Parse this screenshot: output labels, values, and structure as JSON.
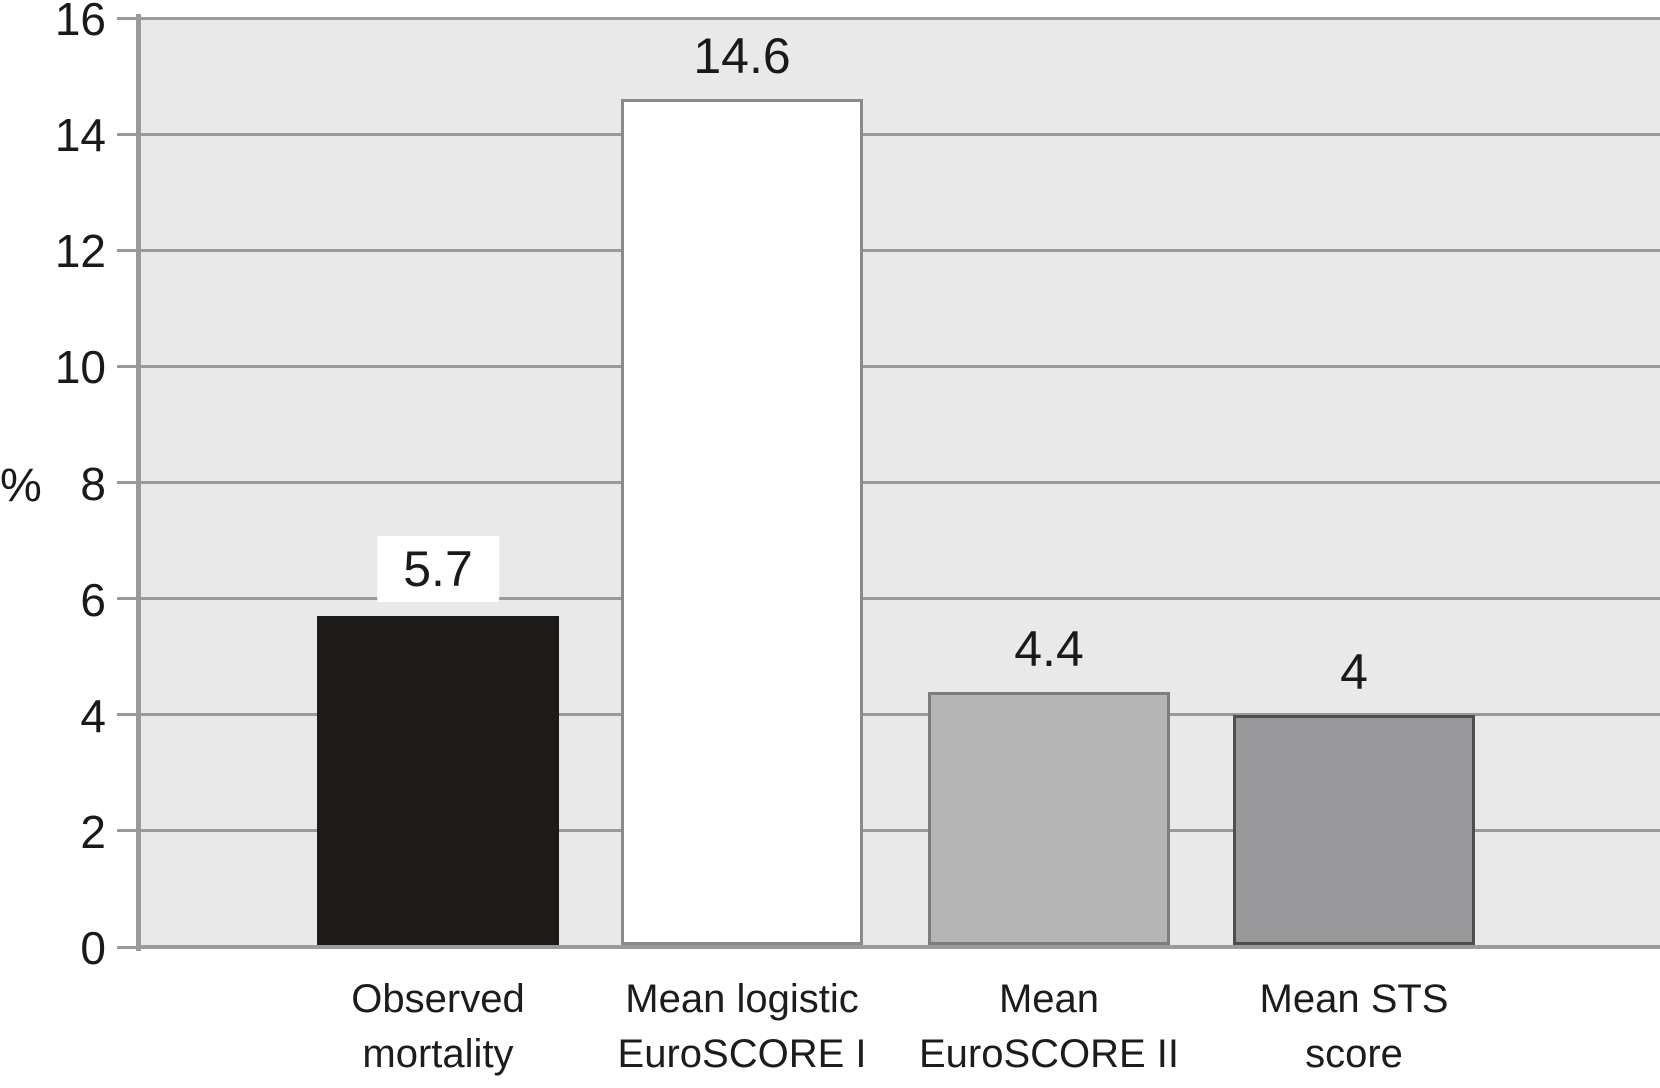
{
  "chart_data": {
    "type": "bar",
    "title": "",
    "ylabel": "%",
    "xlabel": "",
    "categories": [
      "Observed mortality",
      "Mean logistic EuroSCORE I",
      "Mean EuroSCORE II",
      "Mean STS score"
    ],
    "category_lines": [
      [
        "Observed",
        "mortality"
      ],
      [
        "Mean logistic",
        "EuroSCORE I"
      ],
      [
        "Mean",
        "EuroSCORE II"
      ],
      [
        "Mean STS",
        "score"
      ]
    ],
    "values": [
      5.7,
      14.6,
      4.4,
      4
    ],
    "value_labels": [
      "5.7",
      "14.6",
      "4.4",
      "4"
    ],
    "yticks": [
      0,
      2,
      4,
      6,
      8,
      10,
      12,
      14,
      16
    ],
    "ylim": [
      0,
      16
    ],
    "grid": "horizontal-every-2",
    "legend": "none",
    "bars": [
      {
        "fill": "#1d1c1b",
        "border": "#1d1c1b",
        "label_boxed": true
      },
      {
        "fill": "#ffffff",
        "border": "#8a8a8a",
        "label_boxed": false
      },
      {
        "fill": "#b5b5b6",
        "border": "#7d7d7d",
        "label_boxed": false
      },
      {
        "fill": "#98989a",
        "border": "#4e4e4e",
        "label_boxed": false
      }
    ],
    "colors": {
      "plot_bg": "#e9e9ea",
      "gridline": "#9a9a9a",
      "axis": "#9a9a9a",
      "text": "#1a1a1a",
      "label_box_bg": "#ffffff"
    }
  }
}
